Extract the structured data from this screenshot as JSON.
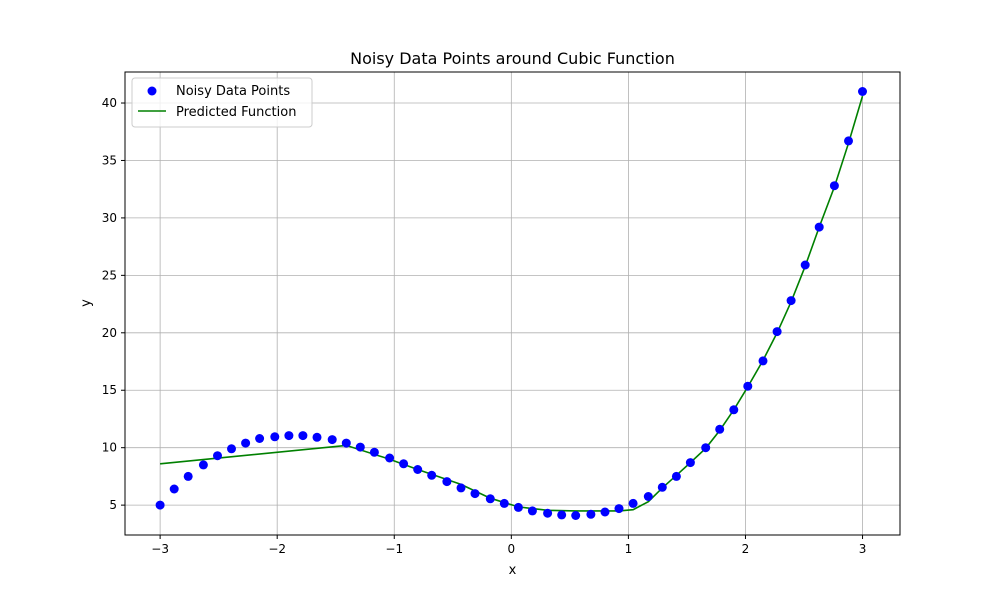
{
  "chart_data": {
    "type": "scatter",
    "title": "Noisy Data Points around Cubic Function",
    "xlabel": "x",
    "ylabel": "y",
    "xlim": [
      -3.3,
      3.32
    ],
    "ylim": [
      2.4,
      42.7
    ],
    "grid": true,
    "legend_position": "top-left",
    "x_ticks": [
      -3,
      -2,
      -1,
      0,
      1,
      2,
      3
    ],
    "x_tick_labels": [
      "−3",
      "−2",
      "−1",
      "0",
      "1",
      "2",
      "3"
    ],
    "y_ticks": [
      5,
      10,
      15,
      20,
      25,
      30,
      35,
      40
    ],
    "y_tick_labels": [
      "5",
      "10",
      "15",
      "20",
      "25",
      "30",
      "35",
      "40"
    ],
    "series": [
      {
        "name": "Noisy Data Points",
        "kind": "scatter",
        "color": "#0000ff",
        "x": [
          -3.0,
          -2.88,
          -2.76,
          -2.63,
          -2.51,
          -2.39,
          -2.27,
          -2.15,
          -2.02,
          -1.9,
          -1.78,
          -1.66,
          -1.53,
          -1.41,
          -1.29,
          -1.17,
          -1.04,
          -0.92,
          -0.8,
          -0.68,
          -0.55,
          -0.43,
          -0.31,
          -0.18,
          -0.06,
          0.06,
          0.18,
          0.31,
          0.43,
          0.55,
          0.68,
          0.8,
          0.92,
          1.04,
          1.17,
          1.29,
          1.41,
          1.53,
          1.66,
          1.78,
          1.9,
          2.02,
          2.15,
          2.27,
          2.39,
          2.51,
          2.63,
          2.76,
          2.88,
          3.0
        ],
        "y": [
          5.0,
          6.4,
          7.5,
          8.5,
          9.3,
          9.9,
          10.4,
          10.8,
          10.95,
          11.05,
          11.05,
          10.9,
          10.7,
          10.4,
          10.05,
          9.6,
          9.1,
          8.6,
          8.1,
          7.6,
          7.05,
          6.5,
          6.0,
          5.55,
          5.15,
          4.8,
          4.5,
          4.3,
          4.15,
          4.1,
          4.2,
          4.4,
          4.7,
          5.15,
          5.75,
          6.55,
          7.5,
          8.7,
          10.0,
          11.6,
          13.3,
          15.35,
          17.55,
          20.1,
          22.8,
          25.9,
          29.2,
          32.8,
          36.7,
          41.0
        ]
      },
      {
        "name": "Predicted Function",
        "kind": "line",
        "color": "#008000",
        "x": [
          -3.0,
          -1.41,
          -1.04,
          -0.8,
          -0.43,
          -0.18,
          0.06,
          0.31,
          0.55,
          0.8,
          0.92,
          1.04,
          1.17,
          1.29,
          1.41,
          1.53,
          1.66,
          1.78,
          1.9,
          2.02,
          2.15,
          2.27,
          2.39,
          2.51,
          2.63,
          2.76,
          2.88,
          3.0
        ],
        "y": [
          8.6,
          10.2,
          9.0,
          8.1,
          6.8,
          5.6,
          4.85,
          4.55,
          4.5,
          4.5,
          4.5,
          4.6,
          5.3,
          6.5,
          7.6,
          8.7,
          9.95,
          11.5,
          13.3,
          15.3,
          17.6,
          20.0,
          22.7,
          25.8,
          29.2,
          32.7,
          36.5,
          40.6
        ]
      }
    ]
  }
}
